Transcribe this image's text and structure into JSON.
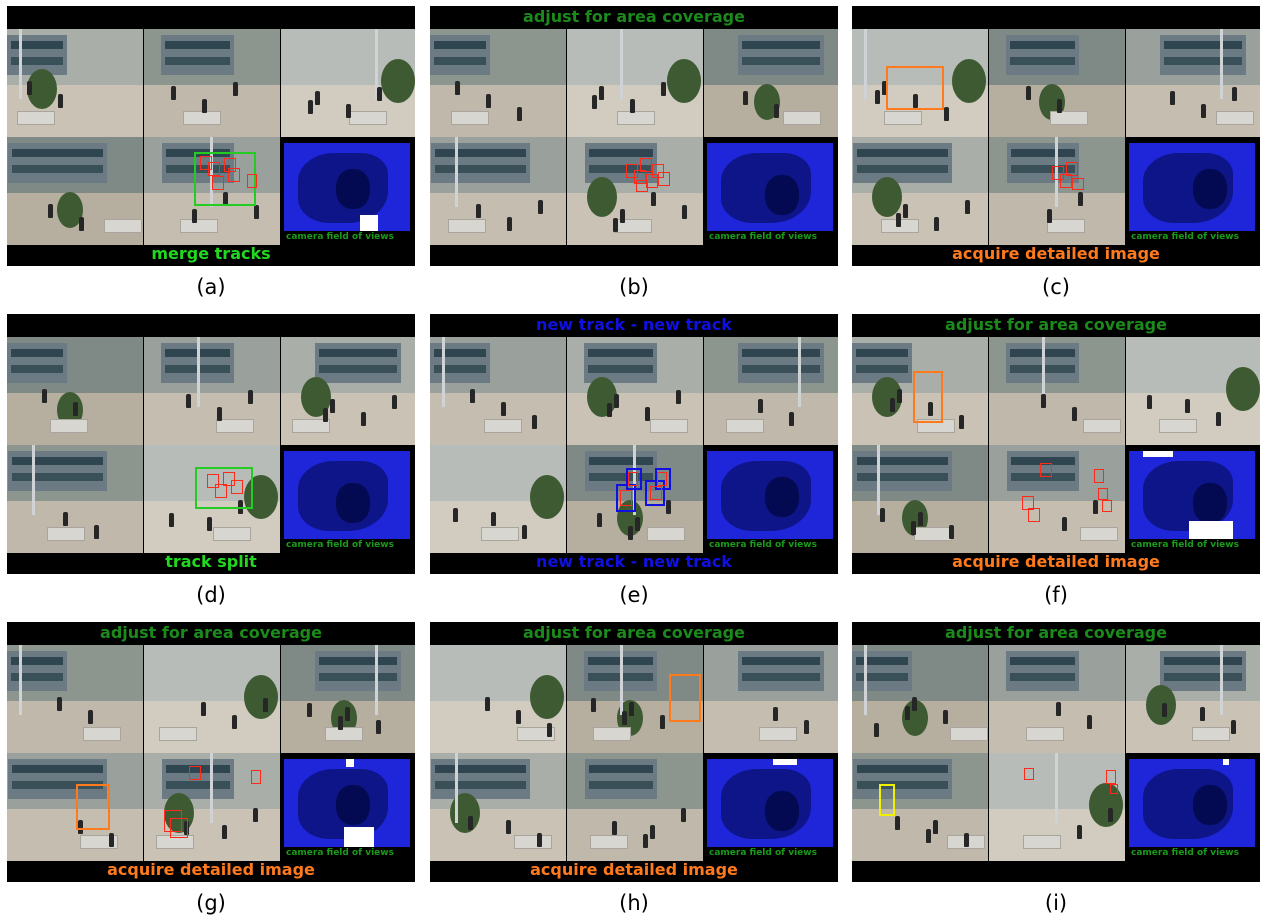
{
  "colors": {
    "green": "#1fd81f",
    "dark_green": "#1b8a1b",
    "orange": "#ff7a1c",
    "blue": "#1010e0",
    "fov_blue": "#1f25d8"
  },
  "fov_label": "camera field of views",
  "panels": [
    {
      "sublabel": "(a)",
      "top_caption": "",
      "top_color": "dark_green",
      "bottom_caption": "merge tracks",
      "bottom_color": "green"
    },
    {
      "sublabel": "(b)",
      "top_caption": "adjust for area coverage",
      "top_color": "dark_green",
      "bottom_caption": "",
      "bottom_color": "green"
    },
    {
      "sublabel": "(c)",
      "top_caption": "",
      "top_color": "dark_green",
      "bottom_caption": "acquire detailed image",
      "bottom_color": "orange"
    },
    {
      "sublabel": "(d)",
      "top_caption": "",
      "top_color": "dark_green",
      "bottom_caption": "track split",
      "bottom_color": "green"
    },
    {
      "sublabel": "(e)",
      "top_caption": "new track - new track",
      "top_color": "blue",
      "bottom_caption": "new track - new track",
      "bottom_color": "blue"
    },
    {
      "sublabel": "(f)",
      "top_caption": "adjust for area coverage",
      "top_color": "dark_green",
      "bottom_caption": "acquire detailed image",
      "bottom_color": "orange"
    },
    {
      "sublabel": "(g)",
      "top_caption": "adjust for area coverage",
      "top_color": "dark_green",
      "bottom_caption": "acquire detailed image",
      "bottom_color": "orange"
    },
    {
      "sublabel": "(h)",
      "top_caption": "adjust for area coverage",
      "top_color": "dark_green",
      "bottom_caption": "acquire detailed image",
      "bottom_color": "orange"
    },
    {
      "sublabel": "(i)",
      "top_caption": "adjust for area coverage",
      "top_color": "dark_green",
      "bottom_caption": "",
      "bottom_color": "green"
    }
  ]
}
